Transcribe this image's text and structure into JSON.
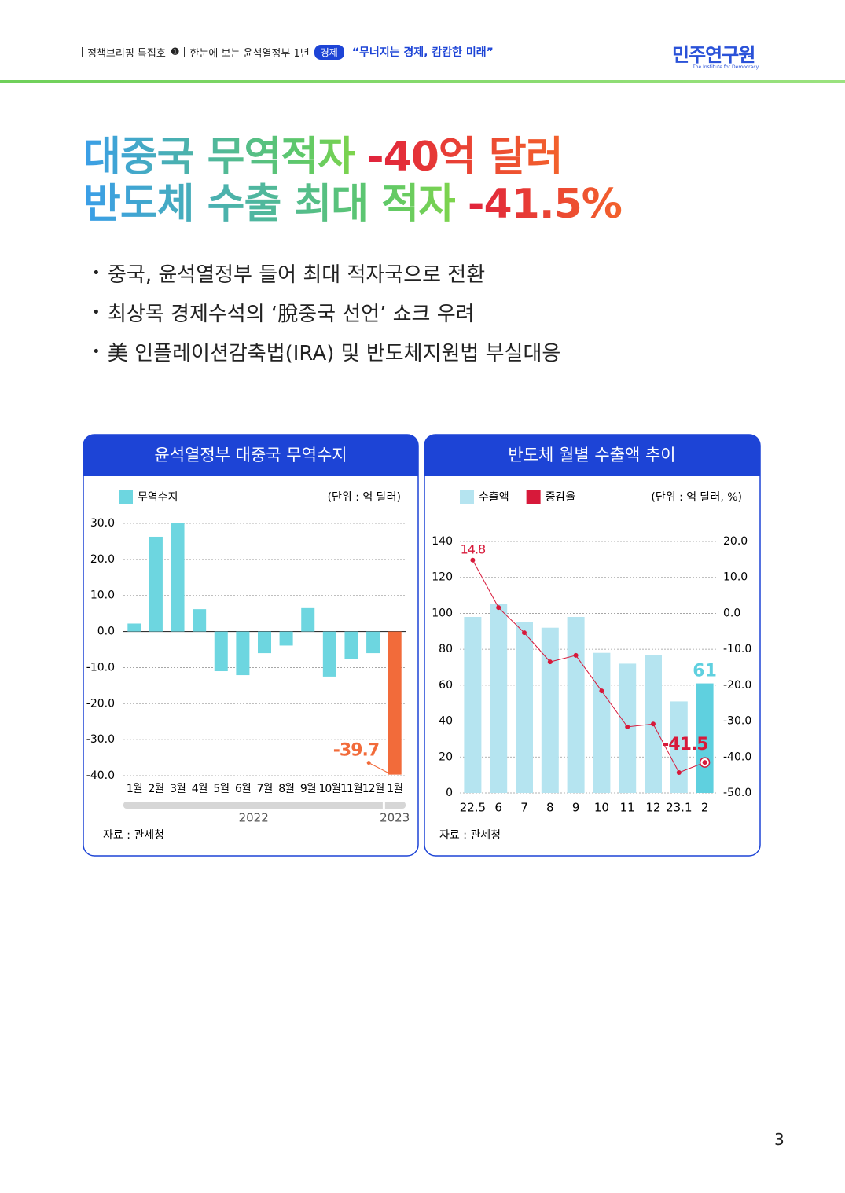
{
  "header": {
    "series": "정책브리핑 특집호",
    "issue": "❶",
    "subtitle": "한눈에 보는 윤석열정부 1년",
    "tag": "경제",
    "headline": "“무너지는 경제, 캄캄한 미래”",
    "logo": "민주연구원",
    "logo_en": "The Institute for Democracy"
  },
  "title": {
    "lines": [
      {
        "main": "대중국 무역적자",
        "accent": "-40억 달러"
      },
      {
        "main": "반도체 수출 최대 적자",
        "accent": "-41.5%"
      }
    ]
  },
  "bullets": [
    "중국, 윤석열정부 들어 최대 적자국으로 전환",
    "최상목 경제수석의 ‘脫중국 선언’ 쇼크 우려",
    "美 인플레이션감축법(IRA) 및 반도체지원법 부실대응"
  ],
  "chart_data": [
    {
      "type": "bar",
      "title": "윤석열정부 대중국 무역수지",
      "unit": "(단위 : 억 달러)",
      "categories": [
        "1월",
        "2월",
        "3월",
        "4월",
        "5월",
        "6월",
        "7월",
        "8월",
        "9월",
        "10월",
        "11월",
        "12월",
        "1월"
      ],
      "x_groups": [
        "2022",
        "2023"
      ],
      "series": [
        {
          "name": "무역수지",
          "color": "#6dd6e0",
          "colors": [
            "#6dd6e0",
            "#6dd6e0",
            "#6dd6e0",
            "#6dd6e0",
            "#6dd6e0",
            "#6dd6e0",
            "#6dd6e0",
            "#6dd6e0",
            "#6dd6e0",
            "#6dd6e0",
            "#6dd6e0",
            "#6dd6e0",
            "#f26b3a"
          ],
          "values": [
            2.2,
            26.3,
            30.0,
            6.2,
            -11.0,
            -12.1,
            -6.0,
            -3.9,
            6.7,
            -12.5,
            -7.6,
            -6.0,
            -39.7
          ],
          "value_labels": [
            null,
            null,
            null,
            null,
            null,
            null,
            null,
            null,
            null,
            null,
            null,
            null,
            "-39.7"
          ]
        }
      ],
      "ylim": [
        -40,
        30
      ],
      "yticks": [
        {
          "value": 30,
          "label": "30.0"
        },
        {
          "value": 20,
          "label": "20.0"
        },
        {
          "value": 10,
          "label": "10.0"
        },
        {
          "value": 0,
          "label": "0.0"
        },
        {
          "value": -10,
          "label": "-10.0"
        },
        {
          "value": -20,
          "label": "-20.0"
        },
        {
          "value": -30,
          "label": "-30.0"
        },
        {
          "value": -40,
          "label": "-40.0"
        }
      ],
      "grid": true,
      "source": "자료 : 관세청"
    },
    {
      "type": "combo",
      "title": "반도체 월별 수출액 추이",
      "unit": "(단위 : 억 달러, %)",
      "categories": [
        "22.5",
        "6",
        "7",
        "8",
        "9",
        "10",
        "11",
        "12",
        "23.1",
        "2"
      ],
      "series": [
        {
          "name": "수출액",
          "color": "#b5e4f0",
          "colors": [
            "#b5e4f0",
            "#b5e4f0",
            "#b5e4f0",
            "#b5e4f0",
            "#b5e4f0",
            "#b5e4f0",
            "#b5e4f0",
            "#b5e4f0",
            "#b5e4f0",
            "#5fd0df"
          ],
          "values": [
            98,
            105,
            95,
            92,
            98,
            78,
            72,
            77,
            51,
            61
          ],
          "value_labels": [
            null,
            null,
            null,
            null,
            null,
            null,
            null,
            null,
            null,
            "61"
          ]
        },
        {
          "name": "증감율",
          "color": "#d7193a",
          "axis": "y2",
          "values": [
            14.8,
            1.6,
            -5.4,
            -13.5,
            -11.7,
            -21.6,
            -31.6,
            -30.8,
            -44.3,
            -41.5
          ],
          "value_labels": [
            "14.8",
            null,
            null,
            null,
            null,
            null,
            null,
            null,
            null,
            "-41.5"
          ]
        }
      ],
      "ylim": [
        0,
        140
      ],
      "yticks": [
        0,
        20,
        40,
        60,
        80,
        100,
        120,
        140
      ],
      "y2lim": [
        -50,
        20
      ],
      "y2ticks": [
        {
          "value": 20,
          "label": "20.0"
        },
        {
          "value": 10,
          "label": "10.0"
        },
        {
          "value": 0,
          "label": "0.0"
        },
        {
          "value": -10,
          "label": "-10.0"
        },
        {
          "value": -20,
          "label": "-20.0"
        },
        {
          "value": -30,
          "label": "-30.0"
        },
        {
          "value": -40,
          "label": "-40.0"
        },
        {
          "value": -50,
          "label": "-50.0"
        }
      ],
      "grid": true,
      "source": "자료 : 관세청"
    }
  ],
  "page_number": "3"
}
